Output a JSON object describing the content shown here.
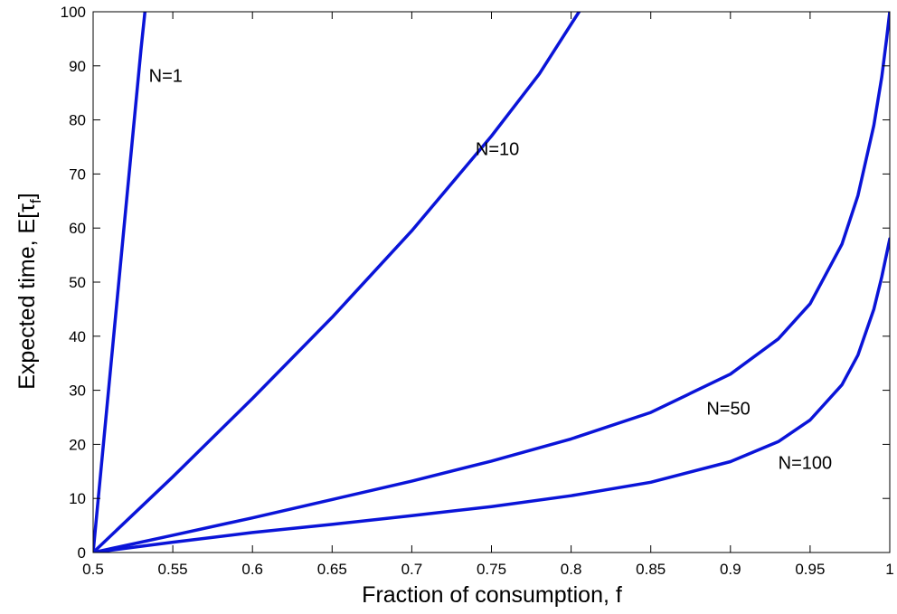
{
  "chart_data": {
    "type": "line",
    "title": "",
    "xlabel": "Fraction of consumption, f",
    "ylabel_main": "Expected time, E[τ",
    "ylabel_sub": "f",
    "ylabel_close": "]",
    "xlim": [
      0.5,
      1
    ],
    "ylim": [
      0,
      100
    ],
    "grid": false,
    "legend": "none",
    "line_color": "#0a14d8",
    "xticks": [
      0.5,
      0.55,
      0.6,
      0.65,
      0.7,
      0.75,
      0.8,
      0.85,
      0.9,
      0.95,
      1
    ],
    "xtick_labels": [
      "0.5",
      "0.55",
      "0.6",
      "0.65",
      "0.7",
      "0.75",
      "0.8",
      "0.85",
      "0.9",
      "0.95",
      "1"
    ],
    "yticks": [
      0,
      10,
      20,
      30,
      40,
      50,
      60,
      70,
      80,
      90,
      100
    ],
    "ytick_labels": [
      "0",
      "10",
      "20",
      "30",
      "40",
      "50",
      "60",
      "70",
      "80",
      "90",
      "100"
    ],
    "series": [
      {
        "name": "N=1",
        "label_at": [
          0.535,
          87
        ],
        "points": [
          [
            0.5,
            0
          ],
          [
            0.51,
            31
          ],
          [
            0.52,
            62
          ],
          [
            0.53,
            93
          ],
          [
            0.5325,
            100
          ]
        ]
      },
      {
        "name": "N=10",
        "label_at": [
          0.74,
          73.5
        ],
        "points": [
          [
            0.5,
            0
          ],
          [
            0.55,
            14
          ],
          [
            0.6,
            28.5
          ],
          [
            0.65,
            43.5
          ],
          [
            0.7,
            59.5
          ],
          [
            0.75,
            77
          ],
          [
            0.78,
            88.5
          ],
          [
            0.805,
            100
          ]
        ]
      },
      {
        "name": "N=50",
        "label_at": [
          0.885,
          25.5
        ],
        "points": [
          [
            0.5,
            0
          ],
          [
            0.55,
            3.2
          ],
          [
            0.6,
            6.4
          ],
          [
            0.65,
            9.8
          ],
          [
            0.7,
            13.2
          ],
          [
            0.75,
            16.9
          ],
          [
            0.8,
            21
          ],
          [
            0.85,
            25.9
          ],
          [
            0.9,
            33
          ],
          [
            0.93,
            39.5
          ],
          [
            0.95,
            46
          ],
          [
            0.97,
            57
          ],
          [
            0.98,
            66
          ],
          [
            0.99,
            79
          ],
          [
            0.995,
            88
          ],
          [
            0.998,
            95
          ],
          [
            1,
            100
          ]
        ]
      },
      {
        "name": "N=100",
        "label_at": [
          0.93,
          15.5
        ],
        "points": [
          [
            0.5,
            0
          ],
          [
            0.55,
            1.9
          ],
          [
            0.6,
            3.7
          ],
          [
            0.65,
            5.2
          ],
          [
            0.7,
            6.8
          ],
          [
            0.75,
            8.5
          ],
          [
            0.8,
            10.5
          ],
          [
            0.85,
            13
          ],
          [
            0.9,
            16.8
          ],
          [
            0.93,
            20.5
          ],
          [
            0.95,
            24.5
          ],
          [
            0.97,
            31
          ],
          [
            0.98,
            36.5
          ],
          [
            0.99,
            45
          ],
          [
            0.995,
            51
          ],
          [
            1,
            58
          ]
        ]
      }
    ]
  }
}
